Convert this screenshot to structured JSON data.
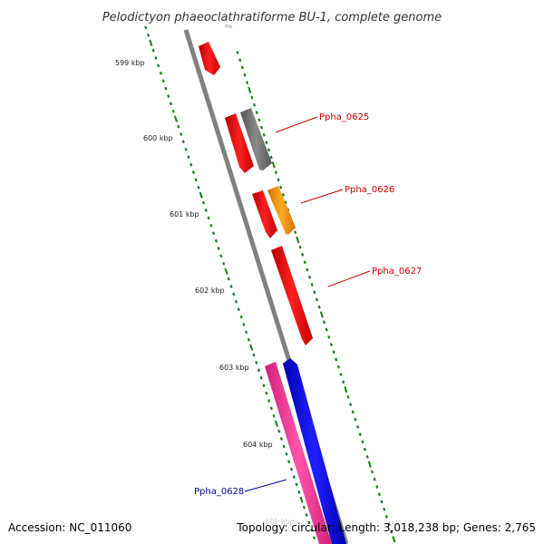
{
  "title": "Pelodictyon phaeoclathratiforme BU-1, complete genome",
  "footer": {
    "accession": "Accession: NC_011060",
    "summary": "Topology: circular; Length: 3,018,238 bp; Genes: 2,765"
  },
  "ticks": [
    {
      "label": "599 kbp"
    },
    {
      "label": "600 kbp"
    },
    {
      "label": "601 kbp"
    },
    {
      "label": "602 kbp"
    },
    {
      "label": "603 kbp"
    },
    {
      "label": "604 kbp"
    },
    {
      "label": "605 kbp"
    }
  ],
  "gene_labels": [
    {
      "name": "Ppha_0625",
      "color": "#cc0000"
    },
    {
      "name": "Ppha_0626",
      "color": "#cc0000"
    },
    {
      "name": "Ppha_0627",
      "color": "#cc0000"
    },
    {
      "name": "Ppha_0628",
      "color": "#000099"
    }
  ],
  "colors": {
    "backbone": "#808080",
    "tick_dots": "#1a7a1a",
    "gene_red": "#ff0000",
    "gene_gray": "#6e6e6e",
    "gene_orange": "#ff9900",
    "gene_blue": "#0000ff",
    "gene_pink": "#ff3399"
  }
}
